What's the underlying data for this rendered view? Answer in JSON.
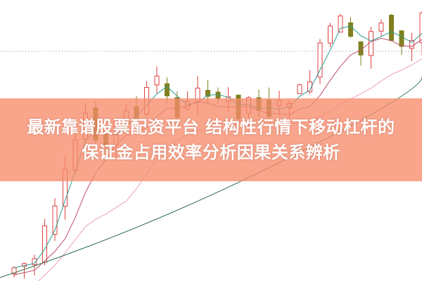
{
  "article": {
    "title_line1": "最新靠谱股票配资平台 结构性行情下移动杠杆的",
    "title_line2": "保证金占用效率分析因果关系辨析"
  },
  "colors": {
    "banner": "#f68c6c",
    "candle_up": "#e04040",
    "candle_down": "#808020",
    "ma_short": "#2a9d8f",
    "ma_mid": "#c0506a",
    "ma_long": "#2f6e4a",
    "ma_pink": "#f0a0c0"
  }
}
